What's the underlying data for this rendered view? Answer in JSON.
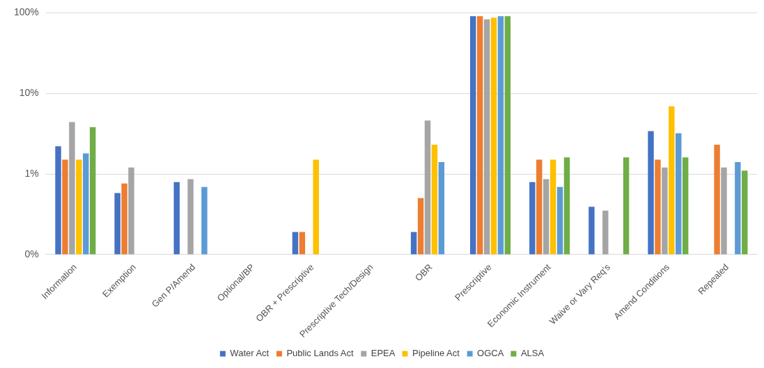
{
  "chart_data": {
    "type": "bar",
    "log": "y",
    "grid": "y",
    "legend": "bottom",
    "categories": [
      "Information",
      "Exemption",
      "Gen P/Amend",
      "Optional/BP",
      "OBR + Prescriptive",
      "Prescriptive Tech/Design",
      "OBR",
      "Prescriptive",
      "Economic Instrument",
      "Waive or Vary Req's",
      "Amend Conditions",
      "Repealed"
    ],
    "ylim": [
      0.1,
      100
    ],
    "yticks": [
      {
        "value": 0.1,
        "label": "0%"
      },
      {
        "value": 1,
        "label": "1%"
      },
      {
        "value": 10,
        "label": "10%"
      },
      {
        "value": 100,
        "label": "100%"
      }
    ],
    "series": [
      {
        "name": "Water Act",
        "color": "#4472c4",
        "values": [
          2.2,
          0.58,
          0.79,
          null,
          0.19,
          null,
          0.19,
          91,
          0.79,
          0.39,
          3.4,
          null
        ]
      },
      {
        "name": "Public Lands Act",
        "color": "#ed7d31",
        "values": [
          1.5,
          0.76,
          null,
          null,
          0.19,
          null,
          0.5,
          91,
          1.5,
          null,
          1.5,
          2.3
        ]
      },
      {
        "name": "EPEA",
        "color": "#a5a5a5",
        "values": [
          4.4,
          1.2,
          0.86,
          null,
          null,
          null,
          4.6,
          83,
          0.86,
          0.35,
          1.2,
          1.2
        ]
      },
      {
        "name": "Pipeline Act",
        "color": "#ffc000",
        "values": [
          1.5,
          null,
          null,
          null,
          1.5,
          null,
          2.3,
          87,
          1.5,
          null,
          6.9,
          null
        ]
      },
      {
        "name": "OGCA",
        "color": "#5b9bd5",
        "values": [
          1.8,
          null,
          0.69,
          null,
          null,
          null,
          1.4,
          91,
          0.69,
          null,
          3.2,
          1.4
        ]
      },
      {
        "name": "ALSA",
        "color": "#70ad47",
        "values": [
          3.8,
          null,
          null,
          null,
          null,
          null,
          null,
          91,
          1.6,
          1.6,
          1.6,
          1.1
        ]
      }
    ]
  }
}
